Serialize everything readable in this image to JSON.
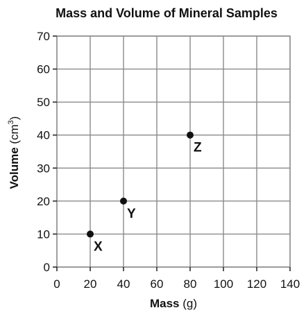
{
  "chart_data": {
    "type": "scatter",
    "title": "Mass and Volume of Mineral Samples",
    "xlabel": {
      "main": "Mass",
      "unit": " (g)"
    },
    "ylabel": {
      "main": "Volume",
      "unit_prefix": " (cm",
      "unit_power": "3",
      "unit_suffix": ")"
    },
    "xlim": [
      0,
      140
    ],
    "ylim": [
      0,
      70
    ],
    "x_ticks": [
      0,
      20,
      40,
      60,
      80,
      100,
      120,
      140
    ],
    "y_ticks": [
      0,
      10,
      20,
      30,
      40,
      50,
      60,
      70
    ],
    "grid": true,
    "points": [
      {
        "label": "X",
        "x": 20,
        "y": 10
      },
      {
        "label": "Y",
        "x": 40,
        "y": 20
      },
      {
        "label": "Z",
        "x": 80,
        "y": 40
      }
    ]
  },
  "colors": {
    "text": "#111111",
    "grid": "#8a8a8a",
    "point": "#111111"
  }
}
